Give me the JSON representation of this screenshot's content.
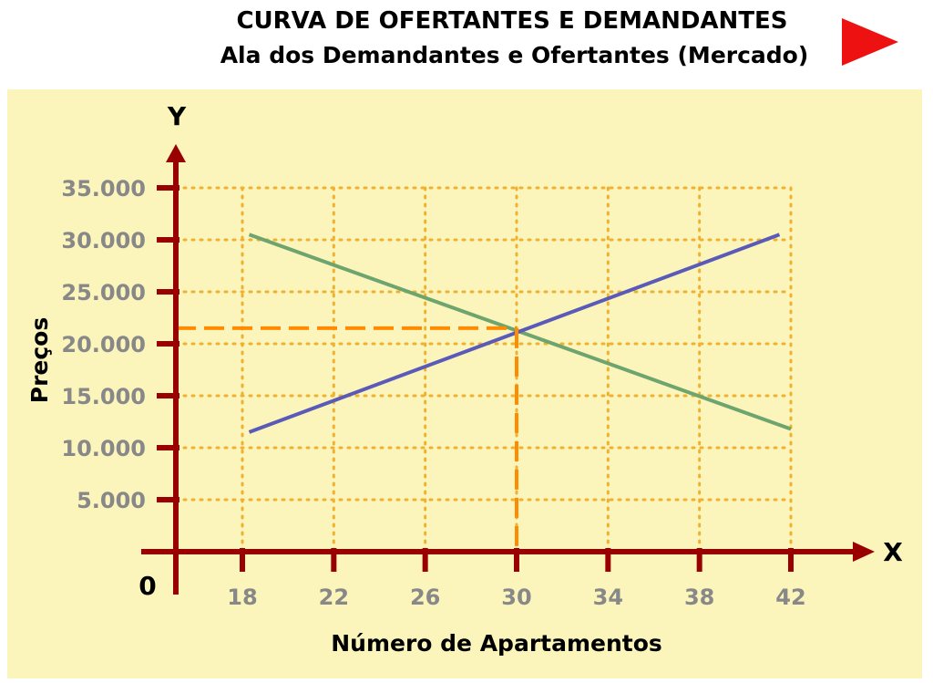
{
  "header": {
    "title_line1": "CURVA DE OFERTANTES E DEMANDANTES",
    "title_line2": "Ala dos Demandantes e Ofertantes  (Mercado)",
    "next_icon": "play-arrow-icon",
    "next_color": "#ee1111"
  },
  "chart_data": {
    "type": "line",
    "xlabel": "Número de Apartamentos",
    "ylabel": "Preços",
    "x_axis_letter": "X",
    "y_axis_letter": "Y",
    "origin_label": "0",
    "x_ticks": [
      18,
      22,
      26,
      30,
      34,
      38,
      42
    ],
    "y_ticks": [
      5000,
      10000,
      15000,
      20000,
      25000,
      30000,
      35000
    ],
    "y_tick_labels": [
      "5.000",
      "10.000",
      "15.000",
      "20.000",
      "25.000",
      "30.000",
      "35.000"
    ],
    "xlim": [
      14,
      45
    ],
    "ylim": [
      0,
      36000
    ],
    "grid": true,
    "series": [
      {
        "x": [
          18.3,
          42
        ],
        "y": [
          30500,
          11800
        ],
        "color": "#6ea46e"
      },
      {
        "x": [
          18.3,
          41.5
        ],
        "y": [
          11500,
          30500
        ],
        "color": "#5a5ab8"
      }
    ],
    "equilibrium": {
      "x": 30,
      "y": 21500,
      "color": "#ff8c00"
    },
    "colors": {
      "plot_background": "#fcf5bb",
      "axis": "#990000",
      "grid": "#f0b030",
      "tick_label": "#888888"
    }
  }
}
